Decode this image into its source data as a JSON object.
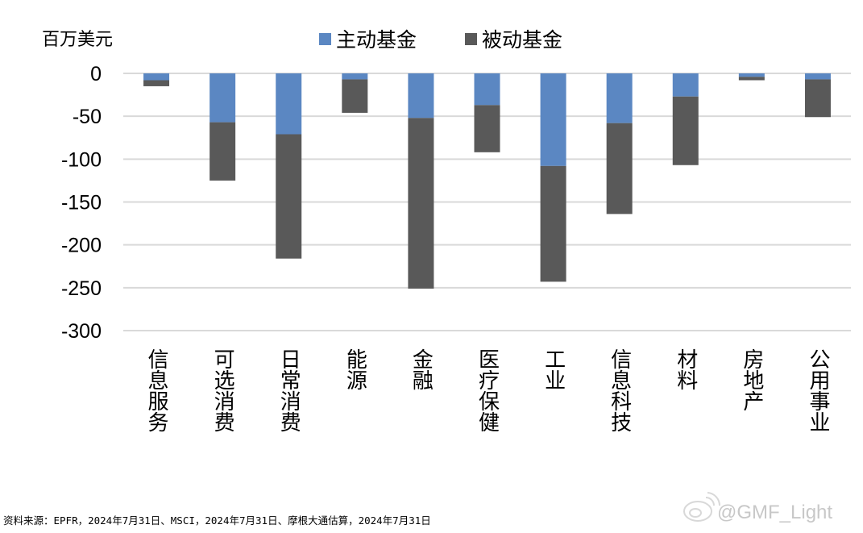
{
  "chart_data": {
    "type": "bar",
    "stacked": true,
    "unit_label": "百万美元",
    "categories": [
      "信息服务",
      "可选消费",
      "日常消费",
      "能源",
      "金融",
      "医疗保健",
      "工业",
      "信息科技",
      "材料",
      "房地产",
      "公用事业"
    ],
    "series": [
      {
        "name": "主动基金",
        "color": "#5B87C2",
        "values": [
          -8,
          -57,
          -71,
          -7,
          -52,
          -37,
          -108,
          -58,
          -27,
          -4,
          -7
        ]
      },
      {
        "name": "被动基金",
        "color": "#595959",
        "values": [
          -7,
          -68,
          -145,
          -39,
          -199,
          -55,
          -135,
          -106,
          -80,
          -4,
          -44
        ]
      }
    ],
    "yticks": [
      0,
      -50,
      -100,
      -150,
      -200,
      -250,
      -300
    ],
    "ylim": [
      -300,
      0
    ],
    "grid": true,
    "legend_position": "top"
  },
  "source_note": "资料来源：EPFR，2024年7月31日、MSCI，2024年7月31日、摩根大通估算，2024年7月31日",
  "watermark": "@GMF_Light"
}
